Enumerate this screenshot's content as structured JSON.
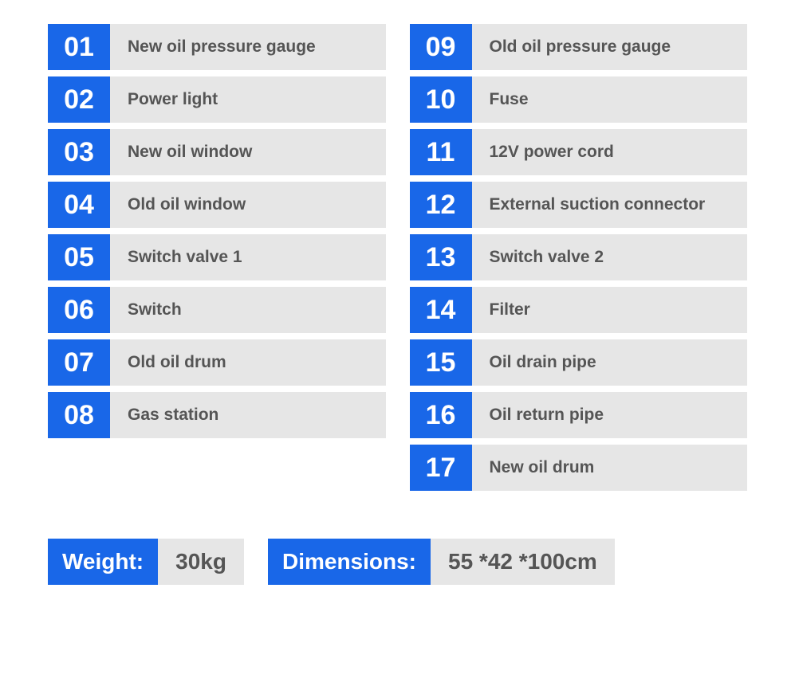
{
  "colors": {
    "badge_bg": "#1967e8",
    "badge_text": "#ffffff",
    "label_bg": "#e6e6e6",
    "label_text": "#555555",
    "page_bg": "#ffffff"
  },
  "typography": {
    "num_fontsize": 34,
    "label_fontsize": 21,
    "spec_fontsize": 28,
    "font_family": "Arial"
  },
  "left_column": [
    {
      "num": "01",
      "label": "New oil pressure gauge"
    },
    {
      "num": "02",
      "label": "Power light"
    },
    {
      "num": "03",
      "label": "New oil window"
    },
    {
      "num": "04",
      "label": "Old oil window"
    },
    {
      "num": "05",
      "label": "Switch valve 1"
    },
    {
      "num": "06",
      "label": "Switch"
    },
    {
      "num": "07",
      "label": "Old oil drum"
    },
    {
      "num": "08",
      "label": "Gas station"
    }
  ],
  "right_column": [
    {
      "num": "09",
      "label": "Old oil pressure gauge"
    },
    {
      "num": "10",
      "label": "Fuse"
    },
    {
      "num": "11",
      "label": "12V power cord"
    },
    {
      "num": "12",
      "label": "External suction connector"
    },
    {
      "num": "13",
      "label": "Switch valve 2"
    },
    {
      "num": "14",
      "label": "Filter"
    },
    {
      "num": "15",
      "label": "Oil drain pipe"
    },
    {
      "num": "16",
      "label": "Oil return pipe"
    },
    {
      "num": "17",
      "label": "New oil drum"
    }
  ],
  "specs": {
    "weight_label": "Weight:",
    "weight_value": "30kg",
    "dimensions_label": "Dimensions:",
    "dimensions_value": "55 *42 *100cm"
  }
}
